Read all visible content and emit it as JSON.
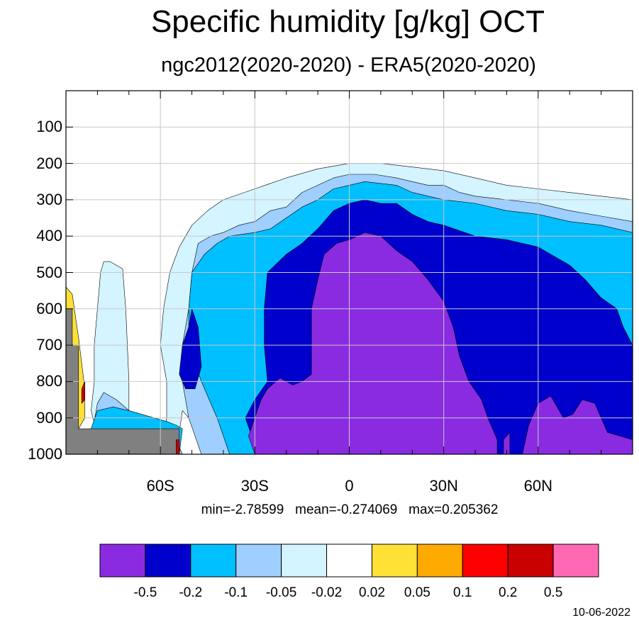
{
  "colors": {
    "band_lt_-0.5": "#8a2be2",
    "band_-0.5_-0.2": "#0000cd",
    "band_-0.2_-0.1": "#00bfff",
    "band_-0.1_-0.05": "#9fcfff",
    "band_-0.05_-0.02": "#d4f4ff",
    "band_-0.02_0.02": "#ffffff",
    "band_0.02_0.05": "#ffe135",
    "band_0.05_0.1": "#ffaa00",
    "band_0.1_0.2": "#ff0000",
    "band_0.2_0.5": "#c80000",
    "band_gt_0.5": "#ff69b4",
    "missing": "#808080",
    "grid": "#c8c8c8"
  },
  "chart_data": {
    "type": "heatmap",
    "title": "Specific humidity [g/kg] OCT",
    "subtitle": "ngc2012(2020-2020) - ERA5(2020-2020)",
    "xlabel": "",
    "ylabel": "",
    "x_axis": {
      "unit": "latitude",
      "range": [
        -90,
        90
      ],
      "tick_values": [
        -60,
        -30,
        0,
        30,
        60
      ],
      "tick_labels": [
        "60S",
        "30S",
        "0",
        "30N",
        "60N"
      ],
      "minor_step": 10
    },
    "y_axis": {
      "unit": "hPa",
      "range": [
        0,
        1000
      ],
      "inverted": true,
      "tick_values": [
        100,
        200,
        300,
        400,
        500,
        600,
        700,
        800,
        900,
        1000
      ],
      "tick_labels": [
        "100",
        "200",
        "300",
        "400",
        "500",
        "600",
        "700",
        "800",
        "900",
        "1000"
      ]
    },
    "grid": true,
    "stats_text": "min=-2.78599   mean=-0.274069   max=0.205362",
    "colorbar": {
      "placement": "bottom",
      "levels": [
        "-0.5",
        "-0.2",
        "-0.1",
        "-0.05",
        "-0.02",
        "0.02",
        "0.05",
        "0.1",
        "0.2",
        "0.5"
      ],
      "colors": [
        "#8a2be2",
        "#0000cd",
        "#00bfff",
        "#9fcfff",
        "#d4f4ff",
        "#ffffff",
        "#ffe135",
        "#ffaa00",
        "#ff0000",
        "#c80000",
        "#ff69b4"
      ]
    },
    "regions": [
      {
        "band": "-0.05 to -0.02",
        "color": "#d4f4ff",
        "boundary": [
          [
            -60,
            1000
          ],
          [
            -58,
            900
          ],
          [
            -58,
            800
          ],
          [
            -60,
            700
          ],
          [
            -59,
            600
          ],
          [
            -57,
            500
          ],
          [
            -54,
            430
          ],
          [
            -50,
            370
          ],
          [
            -45,
            330
          ],
          [
            -40,
            300
          ],
          [
            -30,
            270
          ],
          [
            -20,
            240
          ],
          [
            -10,
            215
          ],
          [
            0,
            200
          ],
          [
            10,
            200
          ],
          [
            20,
            210
          ],
          [
            30,
            220
          ],
          [
            40,
            240
          ],
          [
            50,
            260
          ],
          [
            60,
            270
          ],
          [
            70,
            280
          ],
          [
            80,
            290
          ],
          [
            90,
            300
          ],
          [
            90,
            1000
          ],
          [
            -44,
            1000
          ],
          [
            -47,
            950
          ],
          [
            -50,
            910
          ],
          [
            -53,
            880
          ],
          [
            -54,
            940
          ],
          [
            -56,
            1000
          ]
        ]
      },
      {
        "band": "-0.05 to -0.02",
        "color": "#d4f4ff",
        "boundary": [
          [
            -78,
            1000
          ],
          [
            -80,
            950
          ],
          [
            -82,
            880
          ],
          [
            -81,
            800
          ],
          [
            -81,
            700
          ],
          [
            -80,
            600
          ],
          [
            -79,
            500
          ],
          [
            -78,
            470
          ],
          [
            -76,
            470
          ],
          [
            -72,
            490
          ],
          [
            -71,
            600
          ],
          [
            -70,
            800
          ],
          [
            -70,
            950
          ],
          [
            -69,
            1000
          ]
        ]
      },
      {
        "band": "-0.1 to -0.05",
        "color": "#9fcfff",
        "boundary": [
          [
            -47,
            1000
          ],
          [
            -51,
            900
          ],
          [
            -53,
            800
          ],
          [
            -53,
            700
          ],
          [
            -51,
            600
          ],
          [
            -50,
            500
          ],
          [
            -48,
            420
          ],
          [
            -44,
            400
          ],
          [
            -40,
            390
          ],
          [
            -35,
            370
          ],
          [
            -30,
            360
          ],
          [
            -25,
            330
          ],
          [
            -20,
            320
          ],
          [
            -15,
            280
          ],
          [
            -10,
            260
          ],
          [
            -5,
            240
          ],
          [
            0,
            230
          ],
          [
            8,
            230
          ],
          [
            15,
            240
          ],
          [
            20,
            250
          ],
          [
            25,
            260
          ],
          [
            30,
            260
          ],
          [
            35,
            280
          ],
          [
            40,
            290
          ],
          [
            50,
            300
          ],
          [
            60,
            310
          ],
          [
            70,
            330
          ],
          [
            80,
            345
          ],
          [
            90,
            360
          ],
          [
            90,
            1000
          ],
          [
            -53,
            1000
          ],
          [
            -55,
            960
          ],
          [
            -58,
            930
          ],
          [
            -62,
            910
          ],
          [
            -66,
            900
          ],
          [
            -70,
            880
          ],
          [
            -74,
            850
          ],
          [
            -78,
            830
          ],
          [
            -80,
            860
          ],
          [
            -81,
            910
          ],
          [
            -82,
            1000
          ]
        ]
      },
      {
        "band": "-0.1 to -0.05",
        "color": "#9fcfff",
        "boundary": [
          [
            -38,
            810
          ],
          [
            -37,
            770
          ],
          [
            -36,
            740
          ],
          [
            -35,
            760
          ],
          [
            -33,
            790
          ],
          [
            -31,
            800
          ],
          [
            -33,
            820
          ],
          [
            -36,
            820
          ]
        ]
      },
      {
        "band": "-0.2 to -0.1",
        "color": "#00bfff",
        "boundary": [
          [
            -38,
            1000
          ],
          [
            -42,
            900
          ],
          [
            -47,
            800
          ],
          [
            -51,
            700
          ],
          [
            -51,
            600
          ],
          [
            -50,
            500
          ],
          [
            -46,
            450
          ],
          [
            -42,
            420
          ],
          [
            -38,
            400
          ],
          [
            -30,
            390
          ],
          [
            -25,
            380
          ],
          [
            -20,
            350
          ],
          [
            -15,
            320
          ],
          [
            -10,
            300
          ],
          [
            -5,
            270
          ],
          [
            0,
            260
          ],
          [
            5,
            250
          ],
          [
            15,
            260
          ],
          [
            20,
            280
          ],
          [
            30,
            300
          ],
          [
            40,
            310
          ],
          [
            50,
            330
          ],
          [
            60,
            340
          ],
          [
            70,
            360
          ],
          [
            80,
            370
          ],
          [
            90,
            390
          ],
          [
            90,
            1000
          ]
        ]
      },
      {
        "band": "-0.2 to -0.1",
        "color": "#00bfff",
        "boundary": [
          [
            -84,
            1000
          ],
          [
            -82,
            930
          ],
          [
            -80,
            880
          ],
          [
            -75,
            870
          ],
          [
            -70,
            880
          ],
          [
            -66,
            890
          ],
          [
            -62,
            900
          ],
          [
            -58,
            910
          ],
          [
            -55,
            920
          ],
          [
            -53,
            930
          ],
          [
            -54,
            1000
          ]
        ]
      },
      {
        "band": "-0.5 to -0.2",
        "color": "#0000cd",
        "boundary": [
          [
            -28,
            1000
          ],
          [
            -31,
            950
          ],
          [
            -33,
            900
          ],
          [
            -30,
            850
          ],
          [
            -26,
            800
          ],
          [
            -27,
            700
          ],
          [
            -27,
            600
          ],
          [
            -26,
            500
          ],
          [
            -20,
            450
          ],
          [
            -15,
            420
          ],
          [
            -10,
            380
          ],
          [
            -5,
            330
          ],
          [
            0,
            310
          ],
          [
            5,
            300
          ],
          [
            10,
            310
          ],
          [
            15,
            310
          ],
          [
            20,
            340
          ],
          [
            25,
            360
          ],
          [
            30,
            370
          ],
          [
            40,
            400
          ],
          [
            50,
            410
          ],
          [
            60,
            430
          ],
          [
            70,
            480
          ],
          [
            75,
            520
          ],
          [
            80,
            570
          ],
          [
            85,
            600
          ],
          [
            87,
            650
          ],
          [
            90,
            700
          ],
          [
            90,
            1000
          ]
        ]
      },
      {
        "band": "-0.5 to -0.2",
        "color": "#0000cd",
        "boundary": [
          [
            -53,
            700
          ],
          [
            -51,
            650
          ],
          [
            -50,
            600
          ],
          [
            -48,
            650
          ],
          [
            -47,
            760
          ],
          [
            -49,
            820
          ],
          [
            -52,
            820
          ],
          [
            -54,
            780
          ]
        ]
      },
      {
        "band": "< -0.5",
        "color": "#8a2be2",
        "boundary": [
          [
            -30,
            1000
          ],
          [
            -32,
            950
          ],
          [
            -30,
            900
          ],
          [
            -28,
            850
          ],
          [
            -26,
            820
          ],
          [
            -22,
            790
          ],
          [
            -18,
            810
          ],
          [
            -15,
            800
          ],
          [
            -12,
            780
          ],
          [
            -12,
            700
          ],
          [
            -12,
            600
          ],
          [
            -10,
            520
          ],
          [
            -8,
            450
          ],
          [
            -4,
            420
          ],
          [
            0,
            410
          ],
          [
            5,
            390
          ],
          [
            10,
            400
          ],
          [
            15,
            440
          ],
          [
            20,
            470
          ],
          [
            25,
            520
          ],
          [
            30,
            580
          ],
          [
            33,
            650
          ],
          [
            35,
            730
          ],
          [
            38,
            800
          ],
          [
            42,
            850
          ],
          [
            44,
            900
          ],
          [
            47,
            960
          ],
          [
            47,
            1000
          ]
        ]
      },
      {
        "band": "< -0.5",
        "color": "#8a2be2",
        "boundary": [
          [
            55,
            1000
          ],
          [
            57,
            920
          ],
          [
            60,
            860
          ],
          [
            64,
            840
          ],
          [
            66,
            870
          ],
          [
            68,
            900
          ],
          [
            71,
            890
          ],
          [
            74,
            850
          ],
          [
            78,
            860
          ],
          [
            80,
            900
          ],
          [
            82,
            940
          ],
          [
            90,
            960
          ],
          [
            90,
            1000
          ]
        ]
      },
      {
        "band": "< -0.5",
        "color": "#8a2be2",
        "boundary": [
          [
            49,
            1000
          ],
          [
            49,
            960
          ],
          [
            51,
            940
          ],
          [
            51,
            1000
          ]
        ]
      }
    ],
    "missing_regions": [
      {
        "band": "missing",
        "color": "#808080",
        "boundary": [
          [
            -90,
            1000
          ],
          [
            -90,
            600
          ],
          [
            -88,
            600
          ],
          [
            -88,
            700
          ],
          [
            -86,
            700
          ],
          [
            -86,
            930
          ],
          [
            -54,
            930
          ],
          [
            -54,
            1000
          ]
        ]
      }
    ],
    "positive_regions": [
      {
        "band": "0.02 to 0.05",
        "color": "#ffe135",
        "boundary": [
          [
            -90,
            540
          ],
          [
            -88,
            560
          ],
          [
            -87,
            620
          ],
          [
            -86,
            680
          ],
          [
            -85,
            750
          ],
          [
            -84,
            820
          ],
          [
            -84,
            900
          ],
          [
            -86,
            930
          ],
          [
            -86,
            700
          ],
          [
            -88,
            700
          ],
          [
            -88,
            600
          ],
          [
            -90,
            600
          ]
        ]
      },
      {
        "band": "0.2 to 0.5",
        "color": "#c80000",
        "boundary": [
          [
            -85,
            820
          ],
          [
            -84,
            800
          ],
          [
            -84,
            850
          ],
          [
            -85,
            860
          ]
        ]
      },
      {
        "band": "0.2 to 0.5",
        "color": "#c80000",
        "boundary": [
          [
            -55,
            960
          ],
          [
            -54,
            960
          ],
          [
            -54,
            1000
          ],
          [
            -55,
            1000
          ]
        ]
      }
    ]
  }
}
